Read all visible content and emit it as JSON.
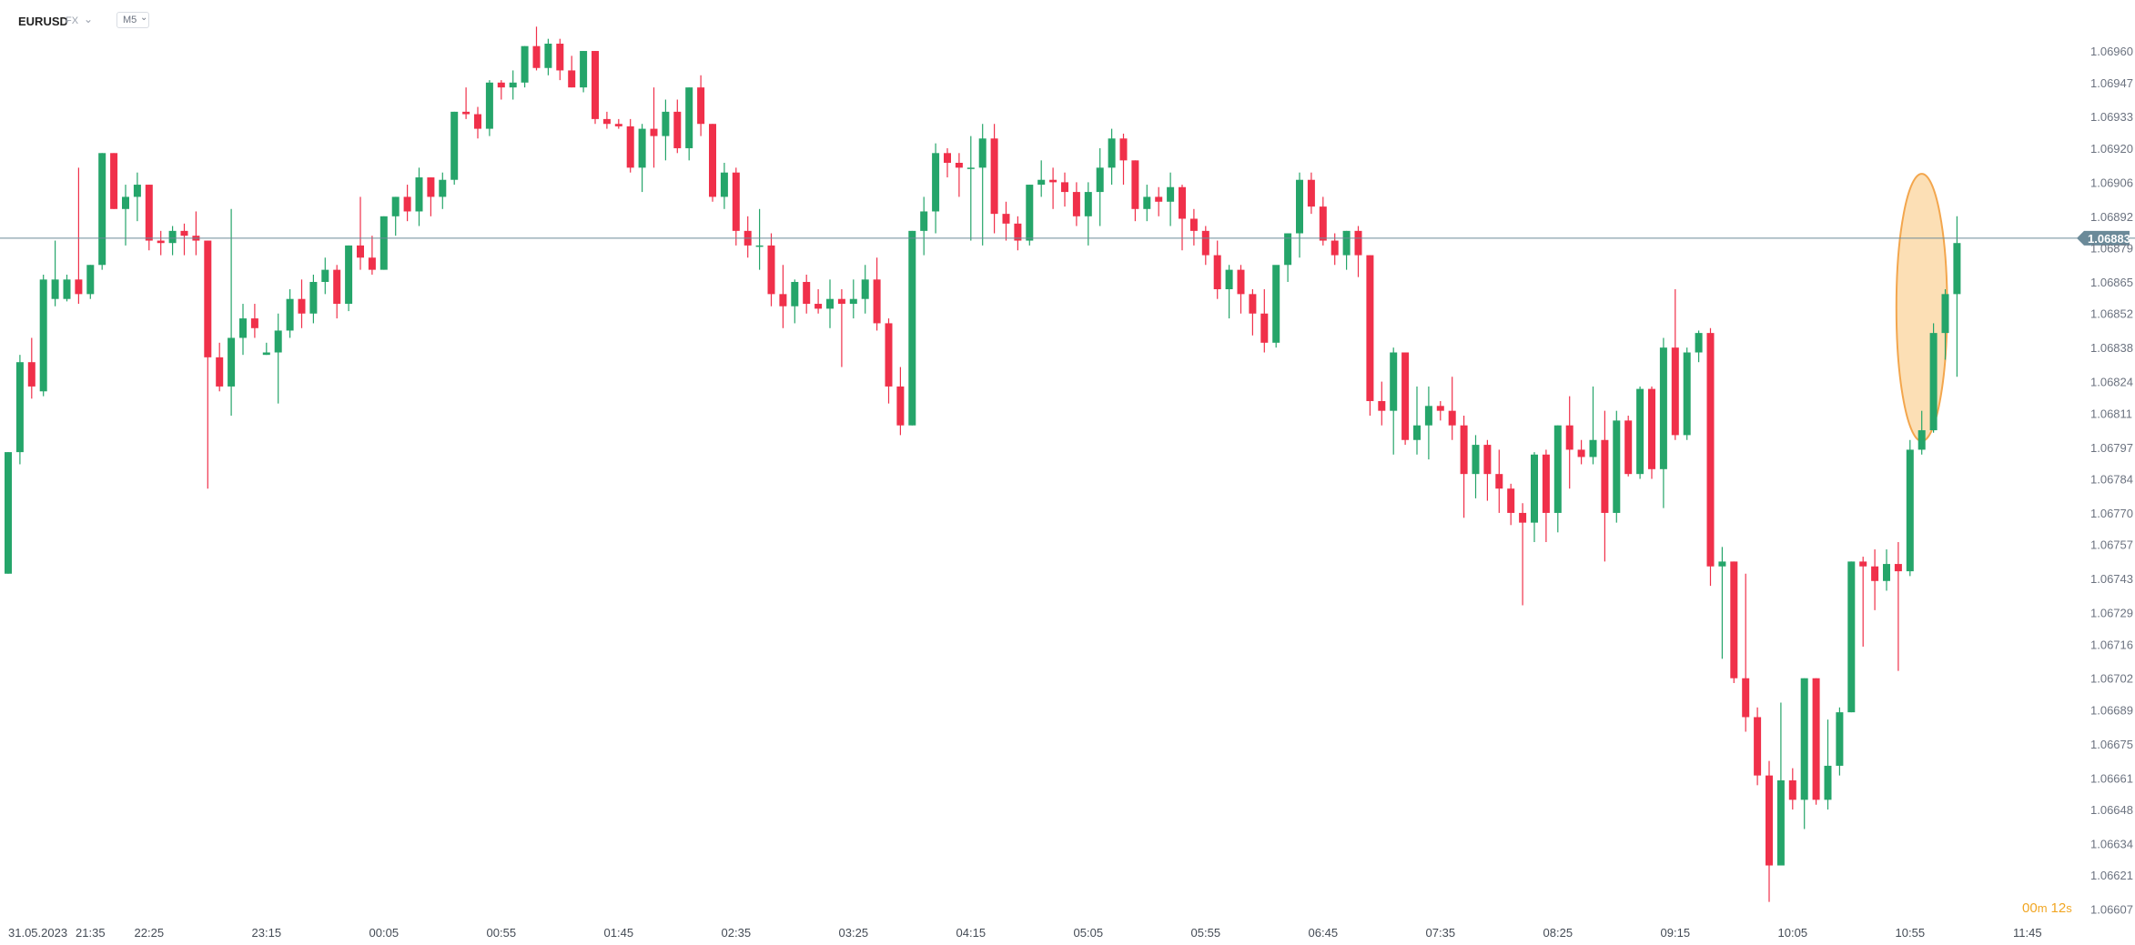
{
  "header": {
    "symbol": "EURUSD",
    "market": "FX",
    "timeframe": "M5"
  },
  "countdown": {
    "minutes": "00",
    "minutes_unit": "m",
    "seconds": "12",
    "seconds_unit": "s"
  },
  "colors": {
    "up": "#25a56a",
    "down": "#f0304a",
    "price_line": "#6b8a99",
    "highlight_fill": "#fbd9a8",
    "highlight_stroke": "#f3a64d",
    "countdown": "#f1a623"
  },
  "chart_data": {
    "type": "candlestick",
    "symbol": "EURUSD",
    "timeframe": "M5",
    "current_price": 1.06883,
    "current_price_label": "1.06883",
    "y_ticks": [
      "1.06960",
      "1.06947",
      "1.06933",
      "1.06920",
      "1.06906",
      "1.06892",
      "1.06879",
      "1.06865",
      "1.06852",
      "1.06838",
      "1.06824",
      "1.06811",
      "1.06797",
      "1.06784",
      "1.06770",
      "1.06757",
      "1.06743",
      "1.06729",
      "1.06716",
      "1.06702",
      "1.06689",
      "1.06675",
      "1.06661",
      "1.06648",
      "1.06634",
      "1.06621",
      "1.06607"
    ],
    "x_ticks": [
      {
        "label": "31.05.2023",
        "at": 0
      },
      {
        "label": "21:35",
        "at": 7
      },
      {
        "label": "22:25",
        "at": 12
      },
      {
        "label": "23:15",
        "at": 22
      },
      {
        "label": "00:05",
        "at": 32
      },
      {
        "label": "00:55",
        "at": 42
      },
      {
        "label": "01:45",
        "at": 52
      },
      {
        "label": "02:35",
        "at": 62
      },
      {
        "label": "03:25",
        "at": 72
      },
      {
        "label": "04:15",
        "at": 82
      },
      {
        "label": "05:05",
        "at": 92
      },
      {
        "label": "05:55",
        "at": 102
      },
      {
        "label": "06:45",
        "at": 112
      },
      {
        "label": "07:35",
        "at": 122
      },
      {
        "label": "08:25",
        "at": 132
      },
      {
        "label": "09:15",
        "at": 142
      },
      {
        "label": "10:05",
        "at": 152
      },
      {
        "label": "10:55",
        "at": 162
      },
      {
        "label": "11:45",
        "at": 172
      }
    ],
    "candles": [
      [
        1.06745,
        1.06795,
        1.06745,
        1.06795
      ],
      [
        1.06795,
        1.06835,
        1.0679,
        1.06832
      ],
      [
        1.06832,
        1.06842,
        1.06817,
        1.06822
      ],
      [
        1.0682,
        1.06868,
        1.06818,
        1.06866
      ],
      [
        1.06858,
        1.06882,
        1.06855,
        1.06866
      ],
      [
        1.06858,
        1.06868,
        1.06857,
        1.06866
      ],
      [
        1.06866,
        1.06912,
        1.06856,
        1.0686
      ],
      [
        1.0686,
        1.06872,
        1.06858,
        1.06872
      ],
      [
        1.06872,
        1.06918,
        1.0687,
        1.06918
      ],
      [
        1.06918,
        1.06918,
        1.06895,
        1.06895
      ],
      [
        1.06895,
        1.06905,
        1.0688,
        1.069
      ],
      [
        1.069,
        1.0691,
        1.0689,
        1.06905
      ],
      [
        1.06905,
        1.06905,
        1.06878,
        1.06882
      ],
      [
        1.06882,
        1.06886,
        1.06876,
        1.06881
      ],
      [
        1.06881,
        1.06888,
        1.06876,
        1.06886
      ],
      [
        1.06886,
        1.06889,
        1.06876,
        1.06884
      ],
      [
        1.06884,
        1.06894,
        1.06876,
        1.06882
      ],
      [
        1.06882,
        1.06882,
        1.0678,
        1.06834
      ],
      [
        1.06834,
        1.0684,
        1.0682,
        1.06822
      ],
      [
        1.06822,
        1.06895,
        1.0681,
        1.06842
      ],
      [
        1.06842,
        1.06856,
        1.06835,
        1.0685
      ],
      [
        1.0685,
        1.06856,
        1.06842,
        1.06846
      ],
      [
        1.06835,
        1.0684,
        1.06835,
        1.06836
      ],
      [
        1.06836,
        1.06852,
        1.06815,
        1.06845
      ],
      [
        1.06845,
        1.06862,
        1.06842,
        1.06858
      ],
      [
        1.06858,
        1.06866,
        1.06846,
        1.06852
      ],
      [
        1.06852,
        1.06868,
        1.06848,
        1.06865
      ],
      [
        1.06865,
        1.06875,
        1.0686,
        1.0687
      ],
      [
        1.0687,
        1.06872,
        1.0685,
        1.06856
      ],
      [
        1.06856,
        1.0688,
        1.06853,
        1.0688
      ],
      [
        1.0688,
        1.069,
        1.0687,
        1.06875
      ],
      [
        1.06875,
        1.06884,
        1.06868,
        1.0687
      ],
      [
        1.0687,
        1.06892,
        1.0687,
        1.06892
      ],
      [
        1.06892,
        1.069,
        1.06884,
        1.069
      ],
      [
        1.069,
        1.06905,
        1.0689,
        1.06894
      ],
      [
        1.06894,
        1.06912,
        1.06888,
        1.06908
      ],
      [
        1.06908,
        1.06908,
        1.06892,
        1.069
      ],
      [
        1.069,
        1.0691,
        1.06895,
        1.06907
      ],
      [
        1.06907,
        1.06935,
        1.06905,
        1.06935
      ],
      [
        1.06935,
        1.06945,
        1.06932,
        1.06934
      ],
      [
        1.06934,
        1.06937,
        1.06924,
        1.06928
      ],
      [
        1.06928,
        1.06948,
        1.06925,
        1.06947
      ],
      [
        1.06947,
        1.06948,
        1.0694,
        1.06945
      ],
      [
        1.06945,
        1.06952,
        1.0694,
        1.06947
      ],
      [
        1.06947,
        1.06962,
        1.06945,
        1.06962
      ],
      [
        1.06962,
        1.0697,
        1.06952,
        1.06953
      ],
      [
        1.06953,
        1.06965,
        1.0695,
        1.06963
      ],
      [
        1.06963,
        1.06965,
        1.06948,
        1.06952
      ],
      [
        1.06952,
        1.06958,
        1.06945,
        1.06945
      ],
      [
        1.06945,
        1.0696,
        1.06943,
        1.0696
      ],
      [
        1.0696,
        1.0696,
        1.0693,
        1.06932
      ],
      [
        1.06932,
        1.06935,
        1.06928,
        1.0693
      ],
      [
        1.0693,
        1.06932,
        1.06928,
        1.06929
      ],
      [
        1.06929,
        1.06932,
        1.0691,
        1.06912
      ],
      [
        1.06912,
        1.0693,
        1.06902,
        1.06928
      ],
      [
        1.06928,
        1.06945,
        1.06912,
        1.06925
      ],
      [
        1.06925,
        1.0694,
        1.06915,
        1.06935
      ],
      [
        1.06935,
        1.0694,
        1.06918,
        1.0692
      ],
      [
        1.0692,
        1.06945,
        1.06915,
        1.06945
      ],
      [
        1.06945,
        1.0695,
        1.06925,
        1.0693
      ],
      [
        1.0693,
        1.0693,
        1.06898,
        1.069
      ],
      [
        1.069,
        1.06914,
        1.06895,
        1.0691
      ],
      [
        1.0691,
        1.06912,
        1.0688,
        1.06886
      ],
      [
        1.06886,
        1.06892,
        1.06875,
        1.0688
      ],
      [
        1.0688,
        1.06895,
        1.0687,
        1.0688
      ],
      [
        1.0688,
        1.06885,
        1.06855,
        1.0686
      ],
      [
        1.0686,
        1.06872,
        1.06846,
        1.06855
      ],
      [
        1.06855,
        1.06866,
        1.06848,
        1.06865
      ],
      [
        1.06865,
        1.06868,
        1.06852,
        1.06856
      ],
      [
        1.06856,
        1.06862,
        1.06852,
        1.06854
      ],
      [
        1.06854,
        1.06866,
        1.06846,
        1.06858
      ],
      [
        1.06858,
        1.06862,
        1.0683,
        1.06856
      ],
      [
        1.06856,
        1.06866,
        1.0685,
        1.06858
      ],
      [
        1.06858,
        1.06872,
        1.06852,
        1.06866
      ],
      [
        1.06866,
        1.06875,
        1.06845,
        1.06848
      ],
      [
        1.06848,
        1.0685,
        1.06815,
        1.06822
      ],
      [
        1.06822,
        1.0683,
        1.06802,
        1.06806
      ],
      [
        1.06806,
        1.06886,
        1.06806,
        1.06886
      ],
      [
        1.06886,
        1.069,
        1.06876,
        1.06894
      ],
      [
        1.06894,
        1.06922,
        1.06885,
        1.06918
      ],
      [
        1.06918,
        1.0692,
        1.06908,
        1.06914
      ],
      [
        1.06914,
        1.06918,
        1.069,
        1.06912
      ],
      [
        1.06912,
        1.06925,
        1.06882,
        1.06912
      ],
      [
        1.06912,
        1.0693,
        1.0688,
        1.06924
      ],
      [
        1.06924,
        1.0693,
        1.06885,
        1.06893
      ],
      [
        1.06893,
        1.06898,
        1.06882,
        1.06889
      ],
      [
        1.06889,
        1.06892,
        1.06878,
        1.06882
      ],
      [
        1.06882,
        1.06905,
        1.0688,
        1.06905
      ],
      [
        1.06905,
        1.06915,
        1.069,
        1.06907
      ],
      [
        1.06907,
        1.06912,
        1.06895,
        1.06906
      ],
      [
        1.06906,
        1.0691,
        1.06896,
        1.06902
      ],
      [
        1.06902,
        1.06906,
        1.06888,
        1.06892
      ],
      [
        1.06892,
        1.06906,
        1.0688,
        1.06902
      ],
      [
        1.06902,
        1.0692,
        1.06888,
        1.06912
      ],
      [
        1.06912,
        1.06928,
        1.06905,
        1.06924
      ],
      [
        1.06924,
        1.06926,
        1.06905,
        1.06915
      ],
      [
        1.06915,
        1.06915,
        1.0689,
        1.06895
      ],
      [
        1.06895,
        1.06905,
        1.0689,
        1.069
      ],
      [
        1.069,
        1.06904,
        1.06892,
        1.06898
      ],
      [
        1.06898,
        1.0691,
        1.06888,
        1.06904
      ],
      [
        1.06904,
        1.06905,
        1.06878,
        1.06891
      ],
      [
        1.06891,
        1.06895,
        1.0688,
        1.06886
      ],
      [
        1.06886,
        1.06888,
        1.06872,
        1.06876
      ],
      [
        1.06876,
        1.06882,
        1.06858,
        1.06862
      ],
      [
        1.06862,
        1.06872,
        1.0685,
        1.0687
      ],
      [
        1.0687,
        1.06872,
        1.06852,
        1.0686
      ],
      [
        1.0686,
        1.06862,
        1.06843,
        1.06852
      ],
      [
        1.06852,
        1.06862,
        1.06836,
        1.0684
      ],
      [
        1.0684,
        1.0687,
        1.06838,
        1.06872
      ],
      [
        1.06872,
        1.06885,
        1.06865,
        1.06885
      ],
      [
        1.06885,
        1.0691,
        1.06875,
        1.06907
      ],
      [
        1.06907,
        1.0691,
        1.06893,
        1.06896
      ],
      [
        1.06896,
        1.069,
        1.0688,
        1.06882
      ],
      [
        1.06882,
        1.06885,
        1.06872,
        1.06876
      ],
      [
        1.06876,
        1.06886,
        1.0687,
        1.06886
      ],
      [
        1.06886,
        1.06888,
        1.06867,
        1.06876
      ],
      [
        1.06876,
        1.06876,
        1.0681,
        1.06816
      ],
      [
        1.06816,
        1.06824,
        1.06806,
        1.06812
      ],
      [
        1.06812,
        1.06838,
        1.06794,
        1.06836
      ],
      [
        1.06836,
        1.06836,
        1.06798,
        1.068
      ],
      [
        1.068,
        1.06822,
        1.06794,
        1.06806
      ],
      [
        1.06806,
        1.06822,
        1.06792,
        1.06814
      ],
      [
        1.06814,
        1.06816,
        1.06808,
        1.06812
      ],
      [
        1.06812,
        1.06826,
        1.068,
        1.06806
      ],
      [
        1.06806,
        1.0681,
        1.06768,
        1.06786
      ],
      [
        1.06786,
        1.06802,
        1.06776,
        1.06798
      ],
      [
        1.06798,
        1.068,
        1.06775,
        1.06786
      ],
      [
        1.06786,
        1.06796,
        1.0677,
        1.0678
      ],
      [
        1.0678,
        1.06782,
        1.06765,
        1.0677
      ],
      [
        1.0677,
        1.06774,
        1.06732,
        1.06766
      ],
      [
        1.06766,
        1.06795,
        1.06758,
        1.06794
      ],
      [
        1.06794,
        1.06796,
        1.06758,
        1.0677
      ],
      [
        1.0677,
        1.06806,
        1.06762,
        1.06806
      ],
      [
        1.06806,
        1.06818,
        1.0678,
        1.06796
      ],
      [
        1.06796,
        1.068,
        1.0679,
        1.06793
      ],
      [
        1.06793,
        1.06822,
        1.0679,
        1.068
      ],
      [
        1.068,
        1.06812,
        1.0675,
        1.0677
      ],
      [
        1.0677,
        1.06812,
        1.06766,
        1.06808
      ],
      [
        1.06808,
        1.0681,
        1.06785,
        1.06786
      ],
      [
        1.06786,
        1.06822,
        1.06784,
        1.06821
      ],
      [
        1.06821,
        1.06822,
        1.06784,
        1.06788
      ],
      [
        1.06788,
        1.06842,
        1.06772,
        1.06838
      ],
      [
        1.06838,
        1.06862,
        1.068,
        1.06802
      ],
      [
        1.06802,
        1.06838,
        1.068,
        1.06836
      ],
      [
        1.06836,
        1.06845,
        1.06832,
        1.06844
      ],
      [
        1.06844,
        1.06846,
        1.0674,
        1.06748
      ],
      [
        1.06748,
        1.06756,
        1.0671,
        1.0675
      ],
      [
        1.0675,
        1.0675,
        1.067,
        1.06702
      ],
      [
        1.06702,
        1.06745,
        1.0668,
        1.06686
      ],
      [
        1.06686,
        1.0669,
        1.06658,
        1.06662
      ],
      [
        1.06662,
        1.06668,
        1.0661,
        1.06625
      ],
      [
        1.06625,
        1.06692,
        1.06625,
        1.0666
      ],
      [
        1.0666,
        1.06665,
        1.06648,
        1.06652
      ],
      [
        1.06652,
        1.06702,
        1.0664,
        1.06702
      ],
      [
        1.06702,
        1.06702,
        1.0665,
        1.06652
      ],
      [
        1.06652,
        1.06685,
        1.06648,
        1.06666
      ],
      [
        1.06666,
        1.0669,
        1.06662,
        1.06688
      ],
      [
        1.06688,
        1.0675,
        1.06688,
        1.0675
      ],
      [
        1.0675,
        1.06752,
        1.06715,
        1.06748
      ],
      [
        1.06748,
        1.06755,
        1.0673,
        1.06742
      ],
      [
        1.06742,
        1.06755,
        1.06738,
        1.06749
      ],
      [
        1.06749,
        1.06758,
        1.06705,
        1.06746
      ],
      [
        1.06746,
        1.068,
        1.06744,
        1.06796
      ],
      [
        1.06796,
        1.06812,
        1.06794,
        1.06804
      ],
      [
        1.06804,
        1.06848,
        1.06803,
        1.06844
      ],
      [
        1.06844,
        1.06862,
        1.06833,
        1.0686
      ],
      [
        1.0686,
        1.06892,
        1.06826,
        1.06881
      ]
    ],
    "highlight": {
      "shape": "ellipse",
      "from_candle": 162,
      "to_candle": 164,
      "price_range": [
        1.06807,
        1.06902
      ]
    },
    "ylim": [
      1.06605,
      1.06966
    ],
    "grid": false
  }
}
